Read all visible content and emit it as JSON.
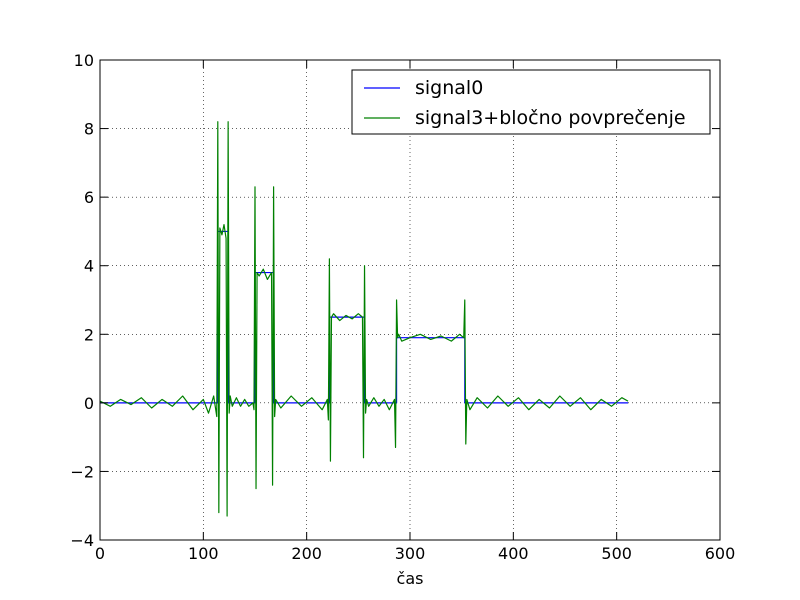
{
  "chart_data": {
    "type": "line",
    "xlabel": "čas",
    "ylabel": "",
    "xlim": [
      0,
      600
    ],
    "ylim": [
      -4,
      10
    ],
    "xticks": [
      0,
      100,
      200,
      300,
      400,
      500,
      600
    ],
    "yticks": [
      -4,
      -2,
      0,
      2,
      4,
      6,
      8,
      10
    ],
    "xtick_labels": [
      "0",
      "100",
      "200",
      "300",
      "400",
      "500",
      "600"
    ],
    "ytick_labels": [
      "−4",
      "−2",
      "0",
      "2",
      "4",
      "6",
      "8",
      "10"
    ],
    "grid": true,
    "legend_position": "top-right",
    "series": [
      {
        "name": "signal0",
        "color": "#0000ff",
        "x": [
          0,
          114,
          114,
          124,
          124,
          150,
          150,
          168,
          168,
          222,
          222,
          256,
          256,
          287,
          287,
          353,
          353,
          511
        ],
        "y": [
          0,
          0,
          5.0,
          5.0,
          0,
          0,
          3.8,
          3.8,
          0,
          0,
          2.5,
          2.5,
          0,
          0,
          1.9,
          1.9,
          0,
          0
        ]
      },
      {
        "name": "signal3+bločno povprečenje",
        "color": "#008000",
        "x": [
          0,
          10,
          20,
          30,
          40,
          50,
          60,
          70,
          80,
          90,
          100,
          105,
          110,
          113,
          114,
          115,
          116,
          118,
          120,
          122,
          123,
          124,
          125,
          126,
          128,
          132,
          136,
          140,
          144,
          148,
          149,
          150,
          151,
          152,
          154,
          158,
          162,
          166,
          167,
          168,
          169,
          170,
          175,
          185,
          195,
          205,
          215,
          220,
          221,
          222,
          223,
          224,
          226,
          232,
          238,
          244,
          250,
          254,
          255,
          256,
          257,
          258,
          260,
          265,
          270,
          275,
          280,
          285,
          286,
          287,
          288,
          289,
          292,
          300,
          310,
          320,
          330,
          340,
          348,
          352,
          353,
          354,
          355,
          358,
          365,
          375,
          385,
          395,
          405,
          415,
          425,
          435,
          445,
          455,
          465,
          475,
          485,
          495,
          505,
          511
        ],
        "y": [
          0.05,
          -0.1,
          0.1,
          -0.05,
          0.15,
          -0.15,
          0.1,
          -0.1,
          0.2,
          -0.2,
          0.1,
          -0.3,
          0.2,
          -0.4,
          8.2,
          -3.2,
          5.1,
          4.9,
          5.2,
          4.8,
          -3.3,
          8.2,
          -0.3,
          0.2,
          -0.1,
          0.15,
          -0.1,
          0.1,
          -0.1,
          0.0,
          -0.2,
          6.3,
          -2.5,
          3.8,
          3.7,
          3.9,
          3.6,
          3.8,
          -2.4,
          6.3,
          -0.4,
          0.1,
          -0.15,
          0.2,
          -0.1,
          0.15,
          -0.2,
          0.1,
          -0.5,
          4.2,
          -1.7,
          2.5,
          2.6,
          2.4,
          2.55,
          2.45,
          2.6,
          2.5,
          -1.6,
          4.0,
          -0.3,
          0.1,
          -0.1,
          0.15,
          -0.1,
          0.1,
          -0.2,
          0.1,
          -1.3,
          3.0,
          1.9,
          2.0,
          1.8,
          1.9,
          2.0,
          1.85,
          1.95,
          1.8,
          2.0,
          1.9,
          3.0,
          -1.2,
          0.1,
          -0.2,
          0.15,
          -0.15,
          0.2,
          -0.1,
          0.15,
          -0.2,
          0.1,
          -0.15,
          0.2,
          -0.1,
          0.15,
          -0.2,
          0.1,
          -0.1,
          0.15,
          0.05
        ]
      }
    ]
  }
}
